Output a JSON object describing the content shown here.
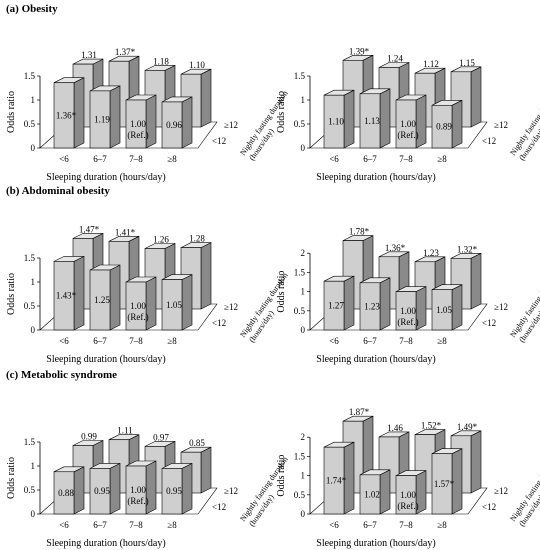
{
  "panels": [
    {
      "title": "(a) Obesity",
      "charts": [
        {
          "type": "bar",
          "ylabel": "Odds ratio",
          "xlabel": "Sleeping duration (hours/day)",
          "zlabel_line1": "Nightly fasting duration",
          "zlabel_line2": "(hours/day)",
          "categories": [
            "<6",
            "6–7",
            "7–8",
            "≥8"
          ],
          "yticks": [
            "0",
            "0.5",
            "1",
            "1.5"
          ],
          "ylim": [
            0,
            1.5
          ],
          "series": [
            {
              "name": "<12",
              "values": [
                1.36,
                1.19,
                1.0,
                0.96
              ],
              "labels": [
                "1.36*",
                "1.19",
                "1.00",
                "0.96"
              ],
              "ref": "(Ref.)"
            },
            {
              "name": "≥12",
              "values": [
                1.31,
                1.37,
                1.18,
                1.1
              ],
              "labels": [
                "1.31",
                "1.37*",
                "1.18",
                "1.10"
              ]
            }
          ]
        },
        {
          "type": "bar",
          "ylabel": "Odds ratio",
          "xlabel": "Sleeping duration (hours/day)",
          "zlabel_line1": "Nightly fasting duration",
          "zlabel_line2": "(hours/day)",
          "categories": [
            "<6",
            "6–7",
            "7–8",
            "≥8"
          ],
          "yticks": [
            "0",
            "0.5",
            "1",
            "1.5"
          ],
          "ylim": [
            0,
            1.5
          ],
          "series": [
            {
              "name": "<12",
              "values": [
                1.1,
                1.13,
                1.0,
                0.89
              ],
              "labels": [
                "1.10",
                "1.13",
                "1.00",
                "0.89"
              ],
              "ref": "(Ref.)"
            },
            {
              "name": "≥12",
              "values": [
                1.39,
                1.24,
                1.12,
                1.15
              ],
              "labels": [
                "1.39*",
                "1.24",
                "1.12",
                "1.15"
              ]
            }
          ]
        }
      ]
    },
    {
      "title": "(b) Abdominal obesity",
      "charts": [
        {
          "type": "bar",
          "ylabel": "Odds ratio",
          "xlabel": "Sleeping duration (hours/day)",
          "zlabel_line1": "Nightly fasting duration",
          "zlabel_line2": "(hours/day)",
          "categories": [
            "<6",
            "6–7",
            "7–8",
            "≥8"
          ],
          "yticks": [
            "0",
            "0.5",
            "1",
            "1.5"
          ],
          "ylim": [
            0,
            1.5
          ],
          "series": [
            {
              "name": "<12",
              "values": [
                1.43,
                1.25,
                1.0,
                1.05
              ],
              "labels": [
                "1.43*",
                "1.25",
                "1.00",
                "1.05"
              ],
              "ref": "(Ref.)"
            },
            {
              "name": "≥12",
              "values": [
                1.47,
                1.41,
                1.26,
                1.28
              ],
              "labels": [
                "1.47*",
                "1.41*",
                "1.26",
                "1.28"
              ]
            }
          ]
        },
        {
          "type": "bar",
          "ylabel": "Odds ratio",
          "xlabel": "Sleeping duration (hours/day)",
          "zlabel_line1": "Nightly fasting duration",
          "zlabel_line2": "(hours/day)",
          "categories": [
            "<6",
            "6–7",
            "7–8",
            "≥8"
          ],
          "yticks": [
            "0",
            "0.5",
            "1",
            "1.5",
            "2"
          ],
          "ylim": [
            0,
            2
          ],
          "series": [
            {
              "name": "<12",
              "values": [
                1.27,
                1.23,
                1.0,
                1.05
              ],
              "labels": [
                "1.27",
                "1.23",
                "1.00",
                "1.05"
              ],
              "ref": "(Ref.)"
            },
            {
              "name": "≥12",
              "values": [
                1.78,
                1.36,
                1.23,
                1.32
              ],
              "labels": [
                "1.78*",
                "1.36*",
                "1.23",
                "1.32*"
              ]
            }
          ]
        }
      ]
    },
    {
      "title": "(c) Metabolic syndrome",
      "charts": [
        {
          "type": "bar",
          "ylabel": "Odds ratio",
          "xlabel": "Sleeping duration (hours/day)",
          "zlabel_line1": "Nightly fasting duration",
          "zlabel_line2": "(hours/day)",
          "categories": [
            "<6",
            "6–7",
            "7–8",
            "≥8"
          ],
          "yticks": [
            "0",
            "0.5",
            "1",
            "1.5"
          ],
          "ylim": [
            0,
            1.5
          ],
          "series": [
            {
              "name": "<12",
              "values": [
                0.88,
                0.95,
                1.0,
                0.95
              ],
              "labels": [
                "0.88",
                "0.95",
                "1.00",
                "0.95"
              ],
              "ref": "(Ref.)"
            },
            {
              "name": "≥12",
              "values": [
                0.99,
                1.11,
                0.97,
                0.85
              ],
              "labels": [
                "0.99",
                "1.11",
                "0.97",
                "0.85"
              ]
            }
          ]
        },
        {
          "type": "bar",
          "ylabel": "Odds ratio",
          "xlabel": "Sleeping duration (hours/day)",
          "zlabel_line1": "Nightly fasting duration",
          "zlabel_line2": "(hours/day)",
          "categories": [
            "<6",
            "6–7",
            "7–8",
            "≥8"
          ],
          "yticks": [
            "0",
            "0.5",
            "1",
            "1.5",
            "2"
          ],
          "ylim": [
            0,
            2
          ],
          "series": [
            {
              "name": "<12",
              "values": [
                1.74,
                1.02,
                1.0,
                1.57
              ],
              "labels": [
                "1.74*",
                "1.02",
                "1.00",
                "1.57*"
              ],
              "ref": "(Ref.)"
            },
            {
              "name": "≥12",
              "values": [
                1.87,
                1.46,
                1.52,
                1.49
              ],
              "labels": [
                "1.87*",
                "1.46",
                "1.52*",
                "1.49*"
              ]
            }
          ]
        }
      ]
    }
  ],
  "colors": {
    "face": "#cfcfcf",
    "side": "#8a8a8a",
    "top": "#e6e6e6",
    "floor": "#ffffff",
    "edge": "#000000"
  }
}
